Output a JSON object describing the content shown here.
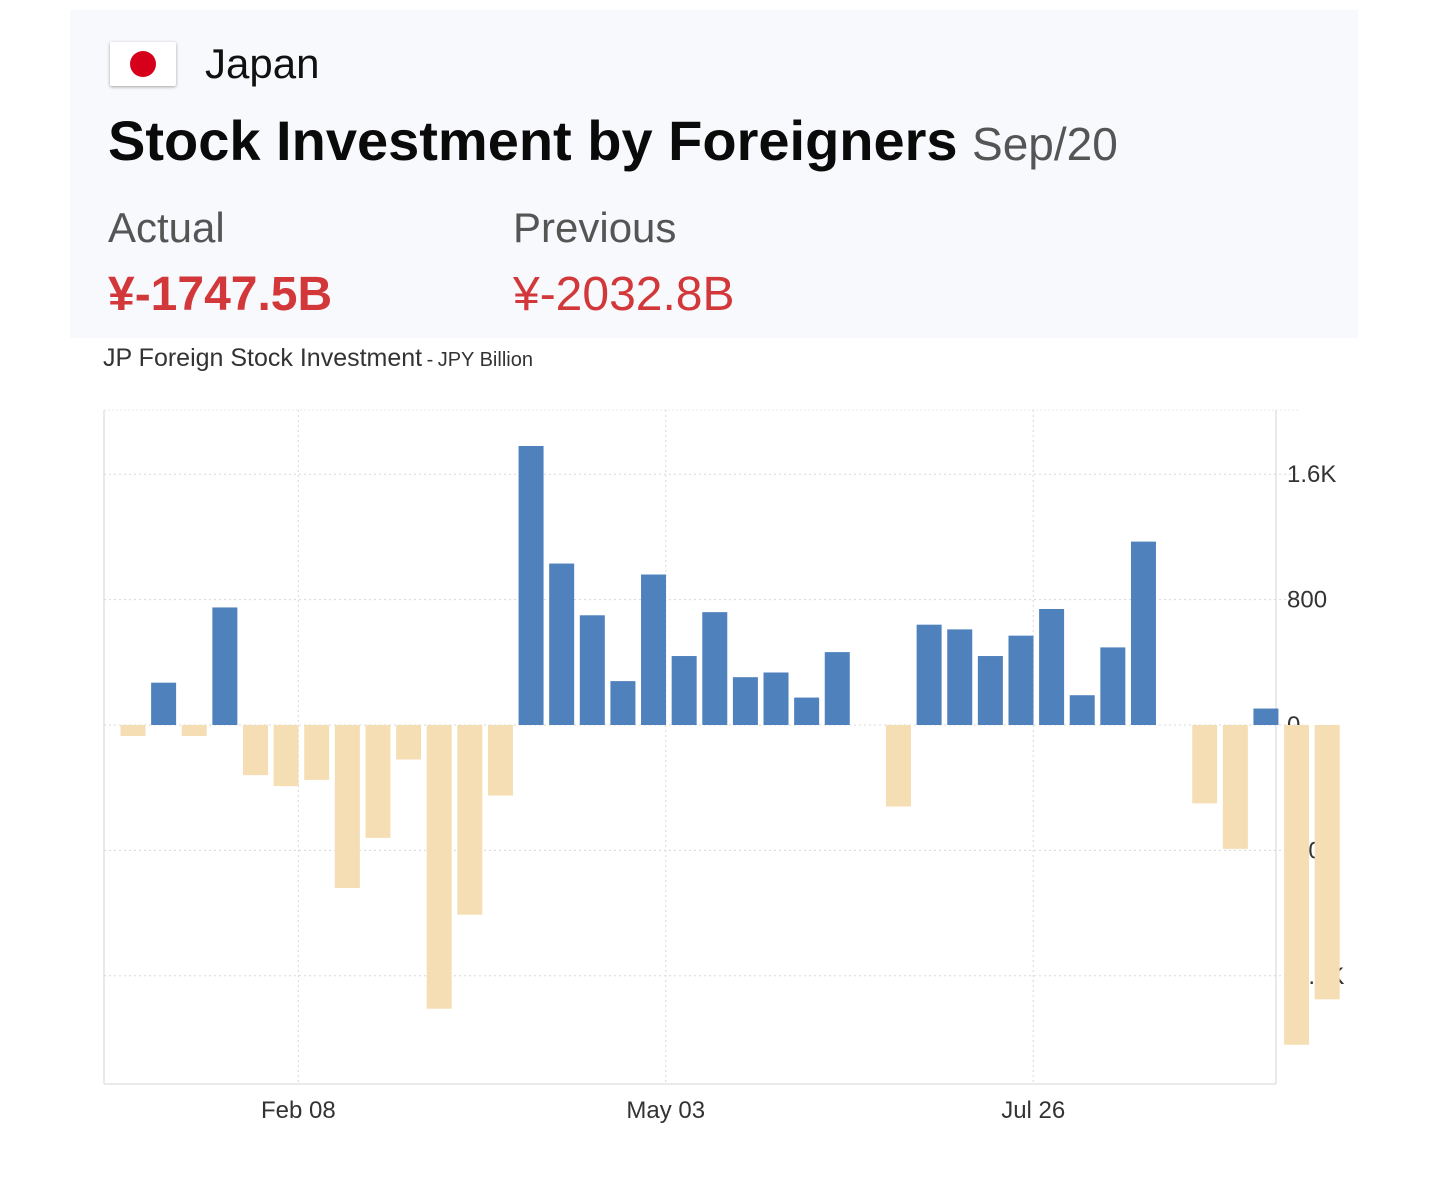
{
  "header": {
    "country": "Japan",
    "flag_icon": "japan-flag-icon",
    "title": "Stock Investment by Foreigners",
    "period": "Sep/20",
    "actual_label": "Actual",
    "actual_value": "¥-1747.5B",
    "previous_label": "Previous",
    "previous_value": "¥-2032.8B",
    "value_color": "#d2383a"
  },
  "chart_caption": {
    "main": "JP Foreign Stock Investment",
    "separator": "-",
    "unit": "JPY Billion"
  },
  "chart_data": {
    "type": "bar",
    "ylim": [
      -2280,
      2020
    ],
    "yticks": [
      {
        "value": 1600,
        "label": "1.6K"
      },
      {
        "value": 800,
        "label": "800"
      },
      {
        "value": 0,
        "label": "0"
      },
      {
        "value": -800,
        "label": "-800"
      },
      {
        "value": -1600,
        "label": "-1.6K"
      }
    ],
    "xticks": [
      {
        "index": 5.4,
        "label": "Feb 08"
      },
      {
        "index": 17.4,
        "label": "May 03"
      },
      {
        "index": 29.4,
        "label": "Jul 26"
      }
    ],
    "positive_color": "#4f81bd",
    "negative_color": "#f5deb3",
    "grid": true,
    "values": [
      -70,
      270,
      -70,
      750,
      -320,
      -390,
      -350,
      -1040,
      -720,
      -220,
      -1810,
      -1210,
      -450,
      1780,
      1030,
      700,
      280,
      960,
      440,
      720,
      305,
      335,
      175,
      465,
      null,
      -520,
      640,
      610,
      440,
      570,
      740,
      190,
      495,
      1170,
      null,
      -500,
      -790,
      105,
      -2040,
      -1750
    ]
  }
}
